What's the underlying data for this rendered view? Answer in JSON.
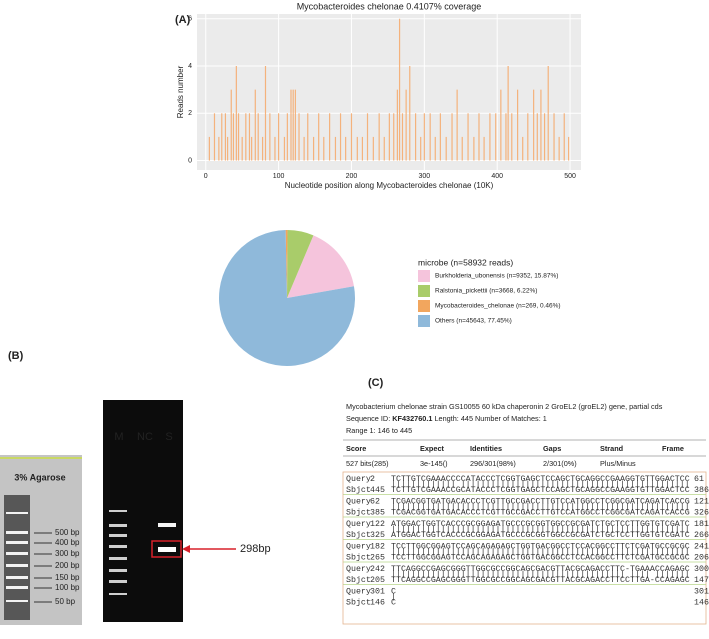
{
  "panel_labels": [
    "(A)",
    "(B)",
    "(C)"
  ],
  "chart_data": [
    {
      "type": "bar",
      "title": "Mycobacteroides chelonae 0.4107% coverage",
      "x_label": "Nucleotide position along  Mycobacteroides chelonae (10K)",
      "y_label": "Reads number",
      "x": [
        5,
        12,
        18,
        22,
        27,
        30,
        35,
        38,
        42,
        45,
        50,
        55,
        60,
        63,
        68,
        72,
        78,
        82,
        88,
        95,
        100,
        108,
        112,
        117,
        120,
        123,
        128,
        135,
        140,
        148,
        155,
        162,
        170,
        178,
        185,
        192,
        200,
        208,
        215,
        222,
        230,
        238,
        245,
        252,
        258,
        263,
        266,
        270,
        275,
        280,
        288,
        295,
        300,
        308,
        315,
        322,
        330,
        338,
        345,
        352,
        360,
        368,
        375,
        382,
        390,
        398,
        405,
        412,
        415,
        420,
        428,
        435,
        442,
        450,
        455,
        460,
        465,
        470,
        478,
        485,
        492,
        498
      ],
      "values": [
        1,
        2,
        1,
        2,
        2,
        1,
        3,
        2,
        4,
        2,
        1,
        2,
        2,
        1,
        3,
        2,
        1,
        4,
        2,
        1,
        2,
        1,
        2,
        3,
        3,
        3,
        2,
        1,
        2,
        1,
        2,
        1,
        2,
        1,
        2,
        1,
        2,
        1,
        1,
        2,
        1,
        2,
        1,
        2,
        2,
        3,
        6,
        2,
        3,
        4,
        2,
        1,
        2,
        2,
        1,
        2,
        1,
        2,
        3,
        1,
        2,
        1,
        2,
        1,
        2,
        2,
        3,
        2,
        4,
        2,
        3,
        1,
        2,
        3,
        2,
        3,
        2,
        4,
        2,
        1,
        2,
        1
      ],
      "color": "#f4b27c",
      "xlim": [
        -12,
        515
      ],
      "ylim": [
        -0.4,
        6.2
      ],
      "xticks": [
        0,
        100,
        200,
        300,
        400,
        500
      ],
      "yticks": [
        0,
        2,
        4,
        6
      ],
      "grid": true
    },
    {
      "type": "pie",
      "legend_title": "microbe (n=58932 reads)",
      "categories": [
        "Burkholderia_ubonensis (n=9352, 15.87%)",
        "Ralstonia_pickettii (n=3668, 6.22%)",
        "Mycobacteroides_chelonae (n=269, 0.46%)",
        "Others (n=45643, 77.45%)"
      ],
      "values": [
        15.87,
        6.22,
        0.46,
        77.45
      ],
      "colors": [
        "#f5c4dc",
        "#a9cc6a",
        "#f2a65e",
        "#8fb9da"
      ]
    }
  ],
  "gel": {
    "agarose": "3% Agarose",
    "ladder": [
      "500 bp",
      "400 bp",
      "300 bp",
      "200 bp",
      "150 bp",
      "100 bp",
      "50 bp"
    ],
    "lanes": [
      "M",
      "NC",
      "S"
    ],
    "band": "298bp"
  },
  "blast": {
    "title": "Mycobacterium chelonae strain GS10055 60 kDa chaperonin 2 GroEL2 (groEL2) gene, partial cds",
    "seq_label": "Sequence ID:",
    "seq_id": "KF432760.1",
    "seq_info": "Length: 445  Number of Matches: 1",
    "range": "Range 1: 146 to 445",
    "headers": [
      "Score",
      "Expect",
      "Identities",
      "Gaps",
      "Strand",
      "Frame"
    ],
    "row": [
      "527 bits(285)",
      "3e-145()",
      "296/301(98%)",
      "2/301(0%)",
      "Plus/Minus"
    ],
    "blocks": [
      {
        "query": [
          "Query",
          "2",
          "TCTTGTCGAAACCCCATACCCTCGGTGAGCTCCAGCTGCAGGCCGAAGGTGTTGGACTCC",
          "61"
        ],
        "match": "||||||||||||| ||||||||||||||||||||||||||||||||||||||||||||||",
        "sbjct": [
          "Sbjct",
          "445",
          "TCTTGTCGAAACCGCATACCCTCGGTGAGCTCCAGCTGCAGGCCGAAGGTGTTGGACTCC",
          "386"
        ]
      },
      {
        "query": [
          "Query",
          "62",
          "TCGACGGTGATGACACCCTCGTTGCCGACCTTGTCCATGGCCTCGGCGATCAGATCACCG",
          "121"
        ],
        "match": "||||||||||||||||||||||||||||||||||||||||||||||||||||||||||||",
        "sbjct": [
          "Sbjct",
          "385",
          "TCGACGGTGATGACACCCTCGTTGCCGACCTTGTCCATGGCCTCGGCGATCAGATCACCG",
          "326"
        ]
      },
      {
        "query": [
          "Query",
          "122",
          "ATGGACTGGTCACCCGCGGAGATGCCCGCGGTGGCCGCGATCTGCTCCTTGGTGTCGATC",
          "181"
        ],
        "match": "||||||||||||||||||||||||||||||||||||||||||||||||||||||||||||",
        "sbjct": [
          "Sbjct",
          "325",
          "ATGGACTGGTCACCCGCGGAGATGCCCGCGGTGGCCGCGATCTGCTCCTTGGTGTCGATC",
          "266"
        ]
      },
      {
        "query": [
          "Query",
          "182",
          "TCCTTGGCGGAGTCCAGCAGAGAGCTGGTGACGGCCTCCACGGCCTTCTCGATGCCGCGC",
          "241"
        ],
        "match": "||||||||||||||||||||||||||||||||||||||||||||||||||||||||||||",
        "sbjct": [
          "Sbjct",
          "265",
          "TCCTTGGCGGAGTCCAGCAGAGAGCTGGTGACGGCCTCCACGGCCTTCTCGATGCCGCGC",
          "206"
        ]
      },
      {
        "query": [
          "Query",
          "242",
          "TTCAGGCCGAGCGGGTTGGCGCCGGCAGCGACGTTACGCAGACCTTC-TGAAACCAGAGC",
          "300"
        ],
        "match": "||||||||||||||||||||||||||||||||||||||||||||||| |||| |||||||",
        "sbjct": [
          "Sbjct",
          "205",
          "TTCAGGCCGAGCGGGTTGGCGCCGGCAGCGACGTTACGCAGACCTTCCTTGA-CCAGAGC",
          "147"
        ]
      },
      {
        "query": [
          "Query",
          "301",
          "C",
          "301"
        ],
        "match": "|",
        "sbjct": [
          "Sbjct",
          "146",
          "C",
          "146"
        ]
      }
    ]
  }
}
